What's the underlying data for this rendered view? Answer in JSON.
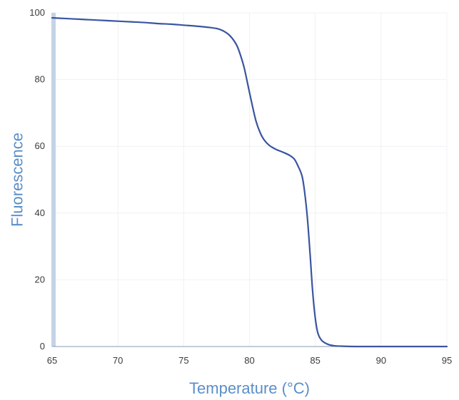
{
  "chart_data": {
    "type": "line",
    "title": "",
    "xlabel": "Temperature (°C)",
    "ylabel": "Fluorescence",
    "xlim": [
      65,
      95
    ],
    "ylim": [
      0,
      100
    ],
    "x_ticks": [
      "65",
      "70",
      "75",
      "80",
      "85",
      "90",
      "95"
    ],
    "y_ticks": [
      "0",
      "20",
      "40",
      "60",
      "80",
      "100"
    ],
    "grid": true,
    "legend": "none",
    "series": [
      {
        "color": "#3a55a0",
        "points": [
          [
            65,
            98.5
          ],
          [
            66,
            98.3
          ],
          [
            67,
            98.1
          ],
          [
            68,
            97.9
          ],
          [
            69,
            97.7
          ],
          [
            70,
            97.5
          ],
          [
            71,
            97.3
          ],
          [
            72,
            97.1
          ],
          [
            73,
            96.8
          ],
          [
            74,
            96.6
          ],
          [
            75,
            96.3
          ],
          [
            76,
            96.0
          ],
          [
            77,
            95.6
          ],
          [
            77.6,
            95.2
          ],
          [
            78,
            94.6
          ],
          [
            78.5,
            93.2
          ],
          [
            79,
            90.5
          ],
          [
            79.3,
            87.5
          ],
          [
            79.6,
            83.5
          ],
          [
            79.9,
            78.0
          ],
          [
            80.2,
            72.5
          ],
          [
            80.5,
            67.5
          ],
          [
            80.8,
            64.2
          ],
          [
            81.1,
            62.0
          ],
          [
            81.5,
            60.3
          ],
          [
            82,
            59.1
          ],
          [
            82.5,
            58.3
          ],
          [
            83,
            57.4
          ],
          [
            83.4,
            56.2
          ],
          [
            83.7,
            54.0
          ],
          [
            84,
            51.0
          ],
          [
            84.2,
            46.0
          ],
          [
            84.4,
            38.5
          ],
          [
            84.6,
            28.0
          ],
          [
            84.8,
            16.5
          ],
          [
            85,
            8.5
          ],
          [
            85.2,
            4.0
          ],
          [
            85.5,
            1.8
          ],
          [
            86,
            0.6
          ],
          [
            86.5,
            0.2
          ],
          [
            87,
            0.1
          ],
          [
            88,
            0
          ],
          [
            90,
            0
          ],
          [
            92,
            0
          ],
          [
            95,
            0
          ]
        ]
      }
    ],
    "colors": {
      "line": "#3a55a0",
      "axis_title": "#5b8ec8",
      "left_band": "#c5d3e6",
      "grid": "#eef1f4",
      "tick_text": "#3a3a3a"
    }
  }
}
